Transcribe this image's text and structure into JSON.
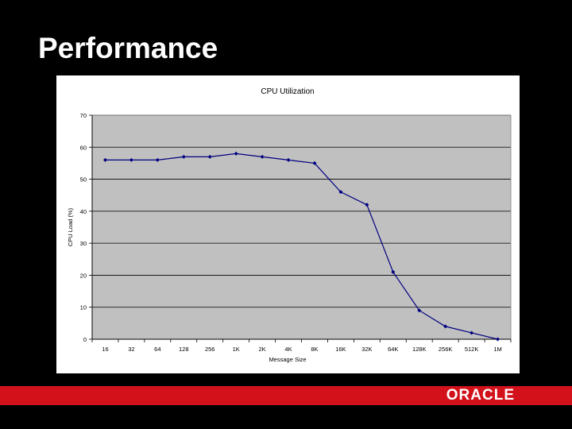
{
  "slide": {
    "title": "Performance"
  },
  "footer": {
    "logo": "ORACLE"
  },
  "colors": {
    "accent": "#d2111a",
    "plot_bg": "#c0c0c0",
    "series": "#000080"
  },
  "chart_data": {
    "type": "line",
    "title": "CPU Utilization",
    "xlabel": "Message Size",
    "ylabel": "CPU Load (%)",
    "categories": [
      "16",
      "32",
      "64",
      "128",
      "256",
      "1K",
      "2K",
      "4K",
      "8K",
      "16K",
      "32K",
      "64K",
      "128K",
      "256K",
      "512K",
      "1M"
    ],
    "series": [
      {
        "values": [
          56,
          56,
          56,
          57,
          57,
          58,
          57,
          56,
          55,
          46,
          42,
          21,
          9,
          4,
          2,
          0
        ]
      }
    ],
    "ylim": [
      0,
      70
    ],
    "yticks": [
      0,
      10,
      20,
      30,
      40,
      50,
      60,
      70
    ],
    "yticks_labels": [
      "0",
      "10",
      "20",
      "30",
      "40",
      "50",
      "60",
      "70"
    ],
    "grid": "horizontal",
    "legend": "none"
  }
}
